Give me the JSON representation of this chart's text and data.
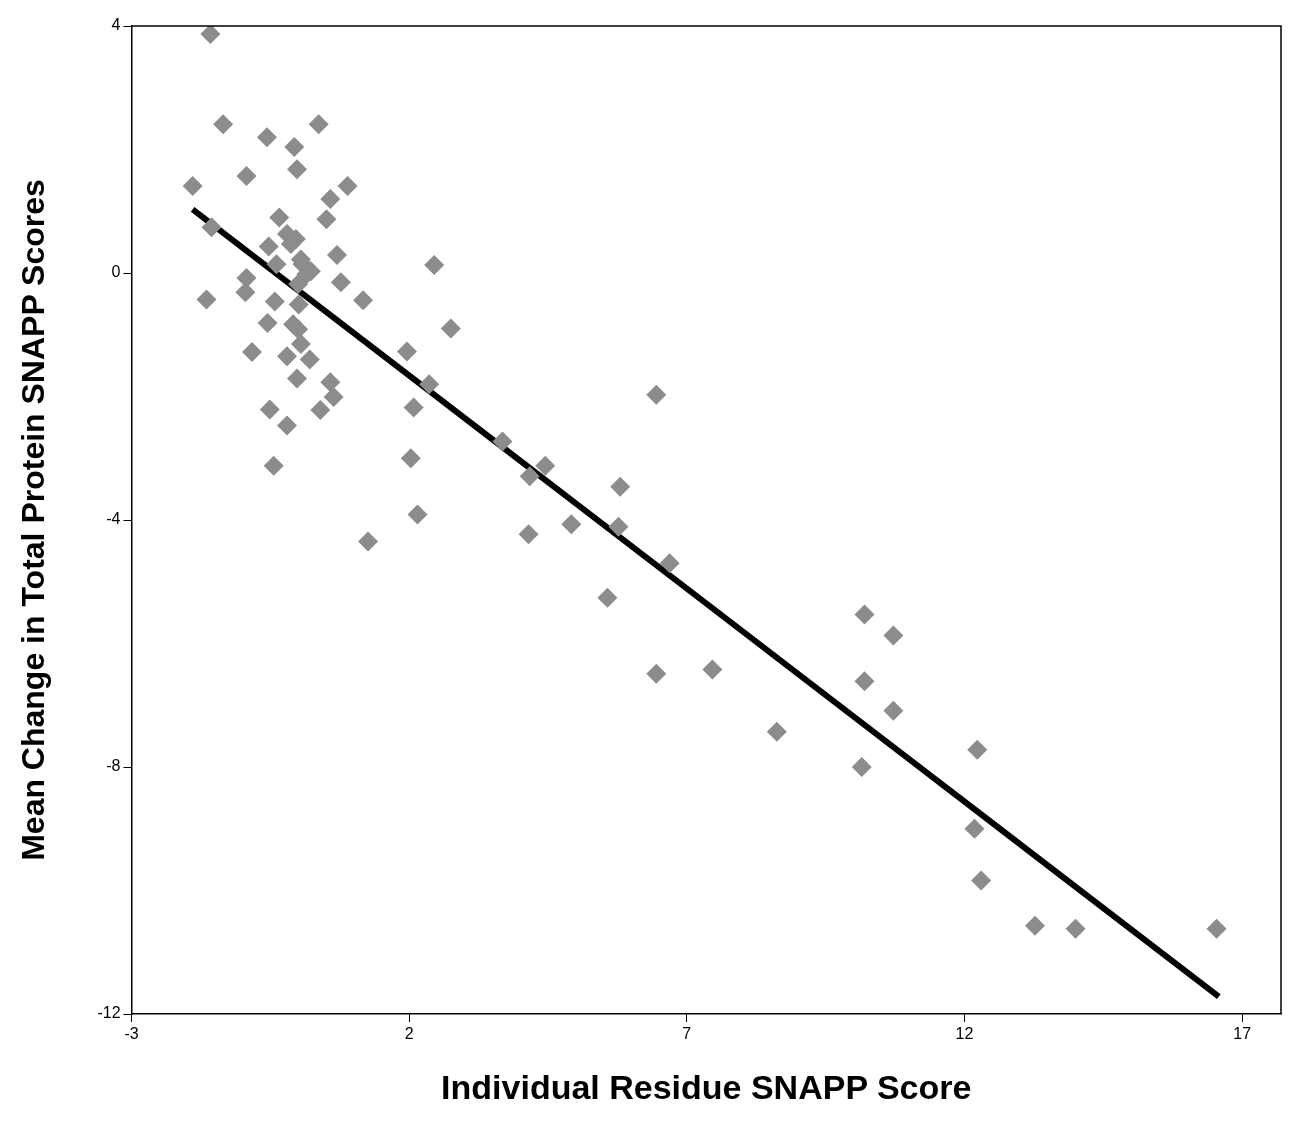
{
  "chart_data": {
    "type": "scatter",
    "xlabel": "Individual Residue SNAPP Score",
    "ylabel": "Mean Change in Total Protein SNAPP Scores",
    "xlim": [
      -3,
      17.7
    ],
    "xticks": [
      -3,
      2,
      7,
      12,
      17
    ],
    "ylim": [
      -12,
      4
    ],
    "yticks": [
      -12,
      -8,
      -4,
      0,
      4
    ],
    "grid": false,
    "series": [
      {
        "color": "#8c8c8c",
        "marker": "diamond",
        "x": [
          -1.58,
          -1.9,
          -1.35,
          -0.56,
          -0.07,
          0.37,
          -0.93,
          -0.02,
          0.89,
          0.58,
          0.51,
          -0.34,
          -1.56,
          0.7,
          -0.53,
          -0.2,
          -0.04,
          0.23,
          -0.93,
          -1.65,
          -0.95,
          0.77,
          1.17,
          -0.42,
          -0.55,
          -0.09,
          -0.83,
          -0.2,
          0.21,
          -0.02,
          0.58,
          0.4,
          0.64,
          -0.51,
          -0.2,
          -0.44,
          0.05,
          0.0,
          0.01,
          0.0,
          0.05,
          -0.39,
          -0.13,
          0.08,
          0.15,
          1.96,
          2.45,
          2.75,
          2.36,
          2.08,
          2.03,
          2.15,
          1.26,
          3.68,
          4.17,
          4.45,
          4.15,
          4.92,
          5.8,
          5.77,
          5.57,
          6.45,
          6.69,
          6.45,
          7.46,
          8.62,
          10.2,
          10.72,
          10.2,
          10.72,
          10.15,
          12.23,
          12.18,
          12.3,
          13.27,
          14.0,
          16.54
        ],
        "values": [
          3.87,
          1.41,
          2.41,
          2.2,
          2.04,
          2.41,
          1.57,
          1.68,
          1.41,
          1.2,
          0.87,
          0.9,
          0.74,
          0.29,
          0.43,
          0.63,
          0.55,
          0.03,
          -0.08,
          -0.43,
          -0.31,
          -0.15,
          -0.44,
          -0.46,
          -0.81,
          -0.83,
          -1.28,
          -1.35,
          -1.4,
          -1.71,
          -1.77,
          -2.22,
          -2.01,
          -2.21,
          -2.47,
          -3.12,
          0.22,
          -0.18,
          -0.51,
          -0.91,
          -1.15,
          0.14,
          0.47,
          0.14,
          -0.02,
          -1.27,
          0.13,
          -0.9,
          -1.8,
          -2.18,
          -3.0,
          -3.91,
          -4.35,
          -2.73,
          -3.29,
          -3.12,
          -4.23,
          -4.07,
          -3.46,
          -4.11,
          -5.26,
          -1.97,
          -4.7,
          -6.49,
          -6.42,
          -7.43,
          -5.53,
          -5.87,
          -6.61,
          -7.09,
          -8.0,
          -7.72,
          -9.0,
          -9.84,
          -10.57,
          -10.62,
          -10.62
        ]
      },
      {
        "type": "line",
        "color": "#000000",
        "marker": "none",
        "x": [
          -1.9,
          16.58
        ],
        "values": [
          1.03,
          -11.72
        ]
      }
    ]
  }
}
